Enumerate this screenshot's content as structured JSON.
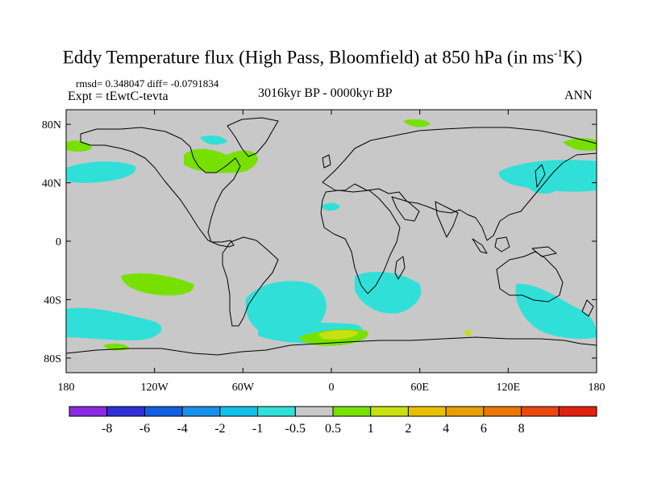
{
  "title": {
    "before": "Eddy Temperature flux (High Pass, Bloomfield) at 850 hPa (in ms",
    "sup": "-1",
    "after": "K)"
  },
  "stats": {
    "rmsd": "rmsd= 0.348047 diff= -0.0791834"
  },
  "experiment": "Expt = tEwtC-tevta",
  "period": "3016kyr BP - 0000kyr BP",
  "season": "ANN",
  "map": {
    "projection": "cylindrical-equidistant",
    "background_color": "#c8c8c8",
    "xticks": [
      {
        "lon": -180,
        "label": "180"
      },
      {
        "lon": -120,
        "label": "120W"
      },
      {
        "lon": -60,
        "label": "60W"
      },
      {
        "lon": 0,
        "label": "0"
      },
      {
        "lon": 60,
        "label": "60E"
      },
      {
        "lon": 120,
        "label": "120E"
      },
      {
        "lon": 180,
        "label": "180"
      }
    ],
    "yticks": [
      {
        "lat": 80,
        "label": "80N"
      },
      {
        "lat": 40,
        "label": "40N"
      },
      {
        "lat": 0,
        "label": "0"
      },
      {
        "lat": -40,
        "label": "40S"
      },
      {
        "lat": -80,
        "label": "80S"
      }
    ]
  },
  "colorbar": {
    "colors": [
      "#8a2be2",
      "#3030d8",
      "#1060e0",
      "#1890e8",
      "#10c0e8",
      "#30e0d8",
      "#c8c8c8",
      "#78e000",
      "#c8e010",
      "#e8c000",
      "#e8a000",
      "#e87800",
      "#e84810",
      "#e02010"
    ],
    "labels": [
      "-8",
      "-6",
      "-4",
      "-2",
      "-1",
      "-0.5",
      "0.5",
      "1",
      "2",
      "4",
      "6",
      "8"
    ]
  }
}
